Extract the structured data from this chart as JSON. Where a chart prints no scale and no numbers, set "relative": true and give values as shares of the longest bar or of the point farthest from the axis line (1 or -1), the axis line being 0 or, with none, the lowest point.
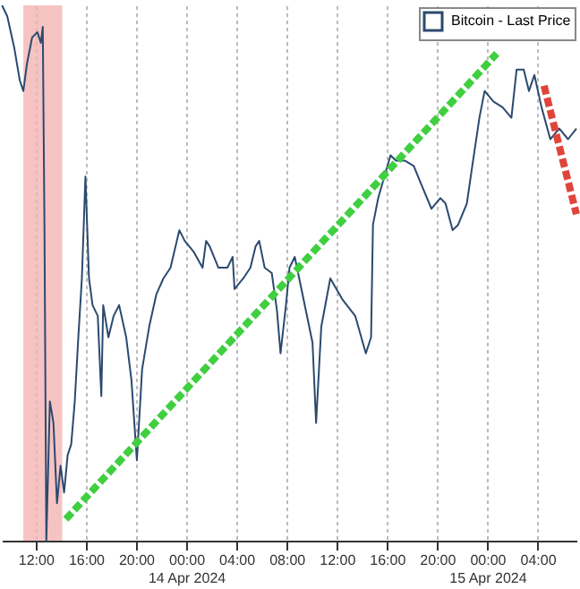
{
  "chart_data": {
    "type": "line",
    "relative": true,
    "legend": "top right",
    "grid": "x",
    "x": [
      "2024-04-13T09:19",
      "2024-04-13T09:44",
      "2024-04-13T10:18",
      "2024-04-13T10:44",
      "2024-04-13T11:01",
      "2024-04-13T11:18",
      "2024-04-13T11:43",
      "2024-04-13T12:08",
      "2024-04-13T12:25",
      "2024-04-13T12:34",
      "2024-04-13T12:42",
      "2024-04-13T12:51",
      "2024-04-13T13:08",
      "2024-04-13T13:25",
      "2024-04-13T13:42",
      "2024-04-13T13:59",
      "2024-04-13T14:16",
      "2024-04-13T14:33",
      "2024-04-13T14:50",
      "2024-04-13T15:07",
      "2024-04-13T15:24",
      "2024-04-13T15:41",
      "2024-04-13T15:58",
      "2024-04-13T16:15",
      "2024-04-13T16:32",
      "2024-04-13T16:57",
      "2024-04-13T17:14",
      "2024-04-13T17:23",
      "2024-04-13T17:48",
      "2024-04-13T18:13",
      "2024-04-13T18:39",
      "2024-04-13T19:13",
      "2024-04-13T19:38",
      "2024-04-13T20:04",
      "2024-04-13T20:29",
      "2024-04-13T21:03",
      "2024-04-13T21:37",
      "2024-04-13T22:11",
      "2024-04-13T22:45",
      "2024-04-13T23:27",
      "2024-04-13T23:53",
      "2024-04-14T00:35",
      "2024-04-14T01:18",
      "2024-04-14T01:35",
      "2024-04-14T01:52",
      "2024-04-14T02:34",
      "2024-04-14T03:17",
      "2024-04-14T03:42",
      "2024-04-14T03:51",
      "2024-04-14T04:33",
      "2024-04-14T05:07",
      "2024-04-14T05:32",
      "2024-04-14T05:49",
      "2024-04-14T06:15",
      "2024-04-14T06:49",
      "2024-04-14T07:14",
      "2024-04-14T07:31",
      "2024-04-14T07:57",
      "2024-04-14T08:14",
      "2024-04-14T08:39",
      "2024-04-14T10:04",
      "2024-04-14T10:21",
      "2024-04-14T10:46",
      "2024-04-14T11:29",
      "2024-04-14T12:28",
      "2024-04-14T13:28",
      "2024-04-14T14:19",
      "2024-04-14T14:44",
      "2024-04-14T14:53",
      "2024-04-14T15:18",
      "2024-04-14T16:17",
      "2024-04-14T16:43",
      "2024-04-14T17:25",
      "2024-04-14T18:08",
      "2024-04-14T18:50",
      "2024-04-14T19:33",
      "2024-04-14T20:15",
      "2024-04-14T20:40",
      "2024-04-14T21:14",
      "2024-04-14T21:40",
      "2024-04-14T22:22",
      "2024-04-14T22:48",
      "2024-04-14T23:22",
      "2024-04-14T23:47",
      "2024-04-15T00:30",
      "2024-04-15T01:12",
      "2024-04-15T01:55",
      "2024-04-15T02:20",
      "2024-04-15T02:54",
      "2024-04-15T03:19",
      "2024-04-15T03:45",
      "2024-04-15T04:19",
      "2024-04-15T05:01",
      "2024-04-15T05:44",
      "2024-04-15T06:26",
      "2024-04-15T07:06"
    ],
    "xlim": [
      "2024-04-13T09:18",
      "2024-04-15T07:06"
    ],
    "xticks": [
      {
        "value": "2024-04-13T12:00",
        "label": "12:00"
      },
      {
        "value": "2024-04-13T16:00",
        "label": "16:00"
      },
      {
        "value": "2024-04-13T20:00",
        "label": "20:00"
      },
      {
        "value": "2024-04-14T00:00",
        "label": "00:00\n14 Apr 2024"
      },
      {
        "value": "2024-04-14T04:00",
        "label": "04:00"
      },
      {
        "value": "2024-04-14T08:00",
        "label": "08:00"
      },
      {
        "value": "2024-04-14T12:00",
        "label": "12:00"
      },
      {
        "value": "2024-04-14T16:00",
        "label": "16:00"
      },
      {
        "value": "2024-04-14T20:00",
        "label": "20:00"
      },
      {
        "value": "2024-04-15T00:00",
        "label": "00:00\n15 Apr 2024"
      },
      {
        "value": "2024-04-15T04:00",
        "label": "04:00"
      }
    ],
    "bands": [
      {
        "axis": "x",
        "from": "2024-04-13T11:01",
        "to": "2024-04-13T14:07",
        "color": "#f4b4b4"
      }
    ],
    "series": [
      {
        "name": "Bitcoin - Last Price",
        "color": "#2b4a6f",
        "line_style": "solid",
        "values": [
          1.0,
          0.98,
          0.92,
          0.86,
          0.84,
          0.89,
          0.94,
          0.95,
          0.93,
          0.96,
          0.59,
          0.0,
          0.26,
          0.22,
          0.07,
          0.14,
          0.09,
          0.16,
          0.18,
          0.26,
          0.38,
          0.49,
          0.68,
          0.49,
          0.44,
          0.42,
          0.27,
          0.44,
          0.38,
          0.42,
          0.44,
          0.38,
          0.3,
          0.15,
          0.32,
          0.4,
          0.46,
          0.49,
          0.51,
          0.58,
          0.56,
          0.54,
          0.51,
          0.56,
          0.55,
          0.51,
          0.51,
          0.53,
          0.47,
          0.49,
          0.51,
          0.55,
          0.56,
          0.51,
          0.5,
          0.43,
          0.35,
          0.44,
          0.51,
          0.53,
          0.37,
          0.22,
          0.4,
          0.49,
          0.45,
          0.42,
          0.35,
          0.38,
          0.59,
          0.64,
          0.72,
          0.71,
          0.71,
          0.7,
          0.66,
          0.62,
          0.64,
          0.63,
          0.58,
          0.59,
          0.63,
          0.7,
          0.79,
          0.84,
          0.82,
          0.81,
          0.79,
          0.88,
          0.88,
          0.84,
          0.87,
          0.81,
          0.75,
          0.77,
          0.75,
          0.77
        ]
      },
      {
        "type": "line",
        "color": "#3fcf3f",
        "line_style": "dashed",
        "x": [
          "2024-04-13T14:24",
          "2024-04-15T00:45"
        ],
        "values": [
          0.04,
          0.91
        ]
      },
      {
        "type": "line",
        "color": "#e0443a",
        "line_style": "dashed",
        "x": [
          "2024-04-15T04:31",
          "2024-04-15T07:06"
        ],
        "values": [
          0.85,
          0.61
        ]
      }
    ]
  }
}
